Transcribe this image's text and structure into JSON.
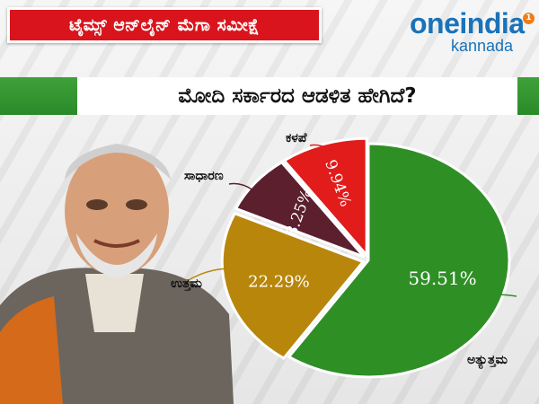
{
  "header": {
    "title": "ಟೈಮ್ಸ್ ಆನ್‌ಲೈನ್ ಮೆಗಾ ಸಮೀಕ್ಷೆ",
    "brand_name": "oneindia",
    "brand_sub": "kannada",
    "brand_badge": "1"
  },
  "question": "ಮೋದಿ ಸರ್ಕಾರದ ಆಡಳಿತ ಹೇಗಿದೆ?",
  "colors": {
    "title_red": "#d9141c",
    "banner_green": "#2a8a2a",
    "brand_blue": "#1a73b9"
  },
  "chart_data": {
    "type": "pie",
    "title": "",
    "categories": [
      "ಅತ್ಯುತ್ತಮ",
      "ಉತ್ತಮ",
      "ಸಾಧಾರಣ",
      "ಕಳಪೆ"
    ],
    "values": [
      59.51,
      22.29,
      8.25,
      9.94
    ],
    "value_labels": [
      "59.51%",
      "22.29%",
      "8.25%",
      "9.94%"
    ],
    "colors": [
      "#2e8f25",
      "#b8860b",
      "#5b1f2e",
      "#e21b1b"
    ]
  }
}
